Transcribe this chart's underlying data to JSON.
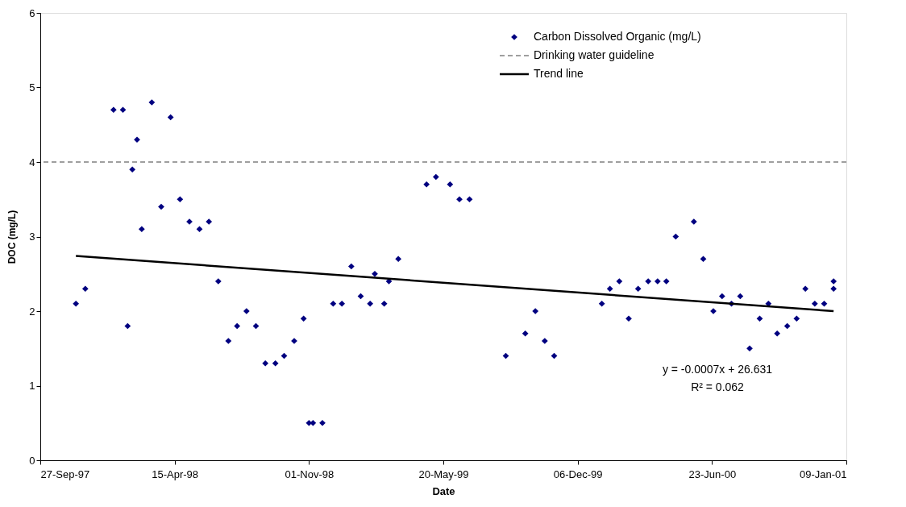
{
  "chart_data": {
    "type": "scatter",
    "xlabel": "Date",
    "ylabel": "DOC (mg/L)",
    "x": [
      "1997-11-19",
      "1997-12-03",
      "1998-01-14",
      "1998-01-28",
      "1998-02-04",
      "1998-02-11",
      "1998-02-18",
      "1998-02-25",
      "1998-03-12",
      "1998-03-26",
      "1998-04-09",
      "1998-04-23",
      "1998-05-07",
      "1998-05-22",
      "1998-06-05",
      "1998-06-19",
      "1998-07-04",
      "1998-07-17",
      "1998-07-31",
      "1998-08-14",
      "1998-08-28",
      "1998-09-12",
      "1998-09-25",
      "1998-10-10",
      "1998-10-24",
      "1998-11-01",
      "1998-11-07",
      "1998-11-21",
      "1998-12-07",
      "1998-12-20",
      "1999-01-03",
      "1999-01-17",
      "1999-01-31",
      "1999-02-07",
      "1999-02-21",
      "1999-02-28",
      "1999-03-14",
      "1999-04-25",
      "1999-05-09",
      "1999-05-30",
      "1999-06-13",
      "1999-06-28",
      "1999-08-21",
      "1999-09-19",
      "1999-10-04",
      "1999-10-18",
      "1999-11-01",
      "2000-01-11",
      "2000-01-23",
      "2000-02-06",
      "2000-02-20",
      "2000-03-05",
      "2000-03-20",
      "2000-04-03",
      "2000-04-16",
      "2000-04-30",
      "2000-05-27",
      "2000-06-10",
      "2000-06-25",
      "2000-07-08",
      "2000-07-22",
      "2000-08-04",
      "2000-08-18",
      "2000-09-02",
      "2000-09-15",
      "2000-09-28",
      "2000-10-13",
      "2000-10-27",
      "2000-11-09",
      "2000-11-23",
      "2000-12-07",
      "2000-12-21",
      "2000-12-21"
    ],
    "series": [
      {
        "name": "Carbon Dissolved Organic (mg/L)",
        "color": "#000080",
        "marker": "diamond",
        "values": [
          2.1,
          2.3,
          4.7,
          4.7,
          1.8,
          3.9,
          4.3,
          3.1,
          4.8,
          3.4,
          4.6,
          3.5,
          3.2,
          3.1,
          3.2,
          2.4,
          1.6,
          1.8,
          2.0,
          1.8,
          1.3,
          1.3,
          1.4,
          1.6,
          1.9,
          0.5,
          0.5,
          0.5,
          2.1,
          2.1,
          2.6,
          2.2,
          2.1,
          2.5,
          2.1,
          2.4,
          2.7,
          3.7,
          3.8,
          3.7,
          3.5,
          3.5,
          1.4,
          1.7,
          2.0,
          1.6,
          1.4,
          2.1,
          2.3,
          2.4,
          1.9,
          2.3,
          2.4,
          2.4,
          2.4,
          3.0,
          3.2,
          2.7,
          2.0,
          2.2,
          2.1,
          2.2,
          1.5,
          1.9,
          2.1,
          1.7,
          1.8,
          1.9,
          2.3,
          2.1,
          2.1,
          2.4,
          2.3
        ]
      },
      {
        "name": "Trend line",
        "type": "line",
        "color": "#000000",
        "line_style": "solid",
        "marker": "none",
        "x": [
          "1997-11-19",
          "2000-12-21"
        ],
        "values": [
          2.74,
          2.0
        ]
      }
    ],
    "ref_lines": [
      {
        "axis": "y",
        "value": 4,
        "label": "Drinking water guideline",
        "color": "#808080",
        "line_style": "dashed"
      }
    ],
    "xlim": [
      "1997-09-27",
      "2001-01-09"
    ],
    "xticks": [
      {
        "value": "1997-09-27",
        "label": "27-Sep-97"
      },
      {
        "value": "1998-04-15",
        "label": "15-Apr-98"
      },
      {
        "value": "1998-11-01",
        "label": "01-Nov-98"
      },
      {
        "value": "1999-05-20",
        "label": "20-May-99"
      },
      {
        "value": "1999-12-06",
        "label": "06-Dec-99"
      },
      {
        "value": "2000-06-23",
        "label": "23-Jun-00"
      },
      {
        "value": "2001-01-09",
        "label": "09-Jan-01"
      }
    ],
    "ylim": [
      0,
      6
    ],
    "yticks": [
      0,
      1,
      2,
      3,
      4,
      5,
      6
    ],
    "grid": false,
    "legend": "top right",
    "annotations": [
      "y = -0.0007x + 26.631",
      "R² = 0.062"
    ]
  }
}
